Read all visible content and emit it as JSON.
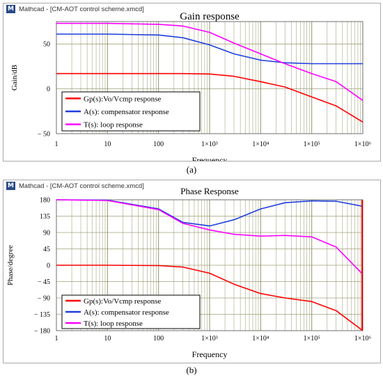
{
  "window_title": "Mathcad - [CM-AOT control scheme.xmcd]",
  "captions": [
    "(a)",
    "(b)"
  ],
  "colors": {
    "gp": "#ff0000",
    "a": "#1f3fe0",
    "t": "#ff00ff",
    "grid": "#8a8a5a"
  },
  "chart_data": [
    {
      "type": "line",
      "title": "Gain response",
      "xlabel": "Frequency",
      "ylabel": "Gain/dB",
      "xscale": "log",
      "xlim": [
        1,
        1000000
      ],
      "ylim": [
        -50,
        75
      ],
      "xticks": [
        1,
        10,
        100,
        1000,
        10000,
        100000,
        1000000
      ],
      "xtick_labels": [
        "1",
        "10",
        "100",
        "1×10³",
        "1×10⁴",
        "1×10⁵",
        "1×10⁶"
      ],
      "yticks": [
        -50,
        0,
        50
      ],
      "ytick_labels": [
        "− 50",
        "0",
        "50"
      ],
      "grid": true,
      "legend_position": "lower-left",
      "series": [
        {
          "name": "Gp(s):Vo/Vcmp response",
          "color": "#ff0000",
          "x": [
            1,
            10,
            100,
            300,
            1000,
            3000,
            10000,
            30000,
            100000,
            300000,
            1000000
          ],
          "y": [
            17,
            17,
            17,
            17,
            16.5,
            14,
            8,
            2,
            -9,
            -19,
            -37
          ]
        },
        {
          "name": "A(s): compensator response",
          "color": "#1f3fe0",
          "x": [
            1,
            10,
            100,
            300,
            1000,
            3000,
            10000,
            30000,
            100000,
            1000000
          ],
          "y": [
            61,
            61,
            60,
            57,
            49,
            39,
            32,
            29,
            28,
            28
          ]
        },
        {
          "name": "T(s): loop response",
          "color": "#ff00ff",
          "x": [
            1,
            10,
            100,
            300,
            1000,
            3000,
            10000,
            30000,
            100000,
            300000,
            1000000
          ],
          "y": [
            73,
            73,
            72,
            70,
            63,
            51,
            39,
            28,
            17,
            8,
            -13
          ]
        }
      ]
    },
    {
      "type": "line",
      "title": "Phase Response",
      "xlabel": "Frequency",
      "ylabel": "Phase/degree",
      "xscale": "log",
      "xlim": [
        1,
        1000000
      ],
      "ylim": [
        -180,
        180
      ],
      "xticks": [
        1,
        10,
        100,
        1000,
        10000,
        100000,
        1000000
      ],
      "xtick_labels": [
        "1",
        "10",
        "100",
        "1×10³",
        "1×10⁴",
        "1×10⁵",
        "1×10⁶"
      ],
      "yticks": [
        -180,
        -135,
        -90,
        -45,
        0,
        45,
        90,
        135,
        180
      ],
      "ytick_labels": [
        "− 180",
        "− 135",
        "− 90",
        "− 45",
        "0",
        "45",
        "90",
        "135",
        "180"
      ],
      "grid": true,
      "legend_position": "lower-left",
      "series": [
        {
          "name": "Gp(s):Vo/Vcmp response",
          "color": "#ff0000",
          "x": [
            1,
            10,
            100,
            300,
            1000,
            3000,
            10000,
            30000,
            100000,
            300000,
            1000000
          ],
          "y": [
            0,
            0,
            -1,
            -5,
            -22,
            -52,
            -78,
            -90,
            -100,
            -125,
            -180
          ]
        },
        {
          "name": "A(s): compensator response",
          "color": "#1f3fe0",
          "x": [
            1,
            10,
            100,
            300,
            1000,
            3000,
            10000,
            30000,
            100000,
            300000,
            1000000
          ],
          "y": [
            180,
            179,
            155,
            118,
            108,
            125,
            155,
            172,
            177,
            176,
            162
          ]
        },
        {
          "name": "T(s): loop response",
          "color": "#ff00ff",
          "x": [
            1,
            10,
            100,
            300,
            1000,
            3000,
            10000,
            30000,
            100000,
            300000,
            1000000
          ],
          "y": [
            180,
            178,
            153,
            115,
            97,
            85,
            80,
            82,
            78,
            50,
            -25
          ]
        }
      ]
    }
  ]
}
